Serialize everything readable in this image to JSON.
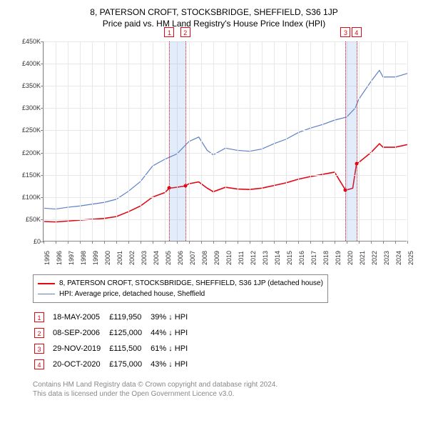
{
  "title": "8, PATERSON CROFT, STOCKSBRIDGE, SHEFFIELD, S36 1JP",
  "subtitle": "Price paid vs. HM Land Registry's House Price Index (HPI)",
  "chart": {
    "type": "line",
    "background_color": "#ffffff",
    "grid_color": "#e8e8e8",
    "axis_color": "#888888",
    "x_range_years": [
      1995,
      2025
    ],
    "ylim": [
      0,
      450000
    ],
    "ytick_step": 50000,
    "yticks": [
      "£0",
      "£50K",
      "£100K",
      "£150K",
      "£200K",
      "£250K",
      "£300K",
      "£350K",
      "£400K",
      "£450K"
    ],
    "xtick_years": [
      1995,
      1996,
      1997,
      1998,
      1999,
      2000,
      2001,
      2002,
      2003,
      2004,
      2005,
      2006,
      2007,
      2008,
      2009,
      2010,
      2011,
      2012,
      2013,
      2014,
      2015,
      2016,
      2017,
      2018,
      2019,
      2020,
      2021,
      2022,
      2023,
      2024,
      2025
    ],
    "series_hpi": {
      "color": "#5b7fc7",
      "width": 1.2,
      "label": "HPI: Average price, detached house, Sheffield",
      "points": [
        [
          1995,
          75000
        ],
        [
          1996,
          73000
        ],
        [
          1997,
          77000
        ],
        [
          1998,
          80000
        ],
        [
          1999,
          84000
        ],
        [
          2000,
          88000
        ],
        [
          2001,
          95000
        ],
        [
          2002,
          113000
        ],
        [
          2003,
          135000
        ],
        [
          2004,
          170000
        ],
        [
          2005,
          185000
        ],
        [
          2006,
          197000
        ],
        [
          2007,
          225000
        ],
        [
          2007.8,
          235000
        ],
        [
          2008.5,
          205000
        ],
        [
          2009,
          195000
        ],
        [
          2010,
          210000
        ],
        [
          2011,
          205000
        ],
        [
          2012,
          203000
        ],
        [
          2013,
          208000
        ],
        [
          2014,
          220000
        ],
        [
          2015,
          230000
        ],
        [
          2016,
          245000
        ],
        [
          2017,
          255000
        ],
        [
          2018,
          263000
        ],
        [
          2019,
          273000
        ],
        [
          2020,
          280000
        ],
        [
          2020.7,
          300000
        ],
        [
          2021,
          320000
        ],
        [
          2022,
          360000
        ],
        [
          2022.7,
          385000
        ],
        [
          2023,
          370000
        ],
        [
          2024,
          370000
        ],
        [
          2025,
          378000
        ]
      ]
    },
    "series_property": {
      "color": "#e30613",
      "width": 1.6,
      "label": "8, PATERSON CROFT, STOCKSBRIDGE, SHEFFIELD, S36 1JP (detached house)",
      "segments": [
        [
          [
            1995,
            45000
          ],
          [
            1996,
            44000
          ],
          [
            1997,
            46000
          ],
          [
            1998,
            48000
          ],
          [
            1999,
            50000
          ],
          [
            2000,
            52000
          ],
          [
            2001,
            56000
          ],
          [
            2002,
            67000
          ],
          [
            2003,
            80000
          ],
          [
            2004,
            100000
          ],
          [
            2005,
            110000
          ],
          [
            2005.38,
            119950
          ]
        ],
        [
          [
            2005.38,
            119950
          ],
          [
            2006,
            122000
          ],
          [
            2006.69,
            125000
          ]
        ],
        [
          [
            2006.69,
            125000
          ],
          [
            2007,
            130000
          ],
          [
            2007.8,
            134000
          ],
          [
            2008.5,
            120000
          ],
          [
            2009,
            112000
          ],
          [
            2010,
            122000
          ],
          [
            2011,
            118000
          ],
          [
            2012,
            117000
          ],
          [
            2013,
            120000
          ],
          [
            2014,
            126000
          ],
          [
            2015,
            132000
          ],
          [
            2016,
            140000
          ],
          [
            2017,
            146000
          ],
          [
            2018,
            151000
          ],
          [
            2019,
            156000
          ],
          [
            2019.91,
            115500
          ]
        ],
        [
          [
            2019.91,
            115500
          ],
          [
            2020,
            116000
          ],
          [
            2020.5,
            120000
          ],
          [
            2020.81,
            175000
          ]
        ],
        [
          [
            2020.81,
            175000
          ],
          [
            2021,
            178000
          ],
          [
            2022,
            200000
          ],
          [
            2022.7,
            220000
          ],
          [
            2023,
            212000
          ],
          [
            2024,
            212000
          ],
          [
            2025,
            218000
          ]
        ]
      ]
    },
    "transaction_markers": [
      {
        "n": "1",
        "x": 2005.38,
        "y": 119950
      },
      {
        "n": "2",
        "x": 2006.69,
        "y": 125000
      },
      {
        "n": "3",
        "x": 2019.91,
        "y": 115500
      },
      {
        "n": "4",
        "x": 2020.81,
        "y": 175000
      }
    ],
    "marker_line_color": "#e30613",
    "band_color": "rgba(100,150,230,0.18)"
  },
  "legend": {
    "property_color": "#e30613",
    "hpi_color": "#5b7fc7"
  },
  "transactions": [
    {
      "n": "1",
      "date": "18-MAY-2005",
      "price": "£119,950",
      "delta": "39% ↓ HPI"
    },
    {
      "n": "2",
      "date": "08-SEP-2006",
      "price": "£125,000",
      "delta": "44% ↓ HPI"
    },
    {
      "n": "3",
      "date": "29-NOV-2019",
      "price": "£115,500",
      "delta": "61% ↓ HPI"
    },
    {
      "n": "4",
      "date": "20-OCT-2020",
      "price": "£175,000",
      "delta": "43% ↓ HPI"
    }
  ],
  "footer_l1": "Contains HM Land Registry data © Crown copyright and database right 2024.",
  "footer_l2": "This data is licensed under the Open Government Licence v3.0."
}
